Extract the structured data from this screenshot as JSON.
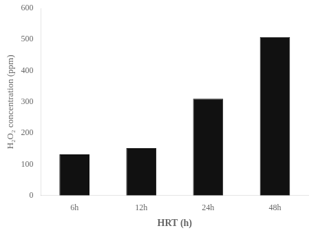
{
  "chart_data": {
    "type": "bar",
    "categories": [
      "6h",
      "12h",
      "24h",
      "48h"
    ],
    "values": [
      132,
      152,
      310,
      508
    ],
    "color": "#111111",
    "xlabel": "HRT (h)",
    "ylabel": "H₂O₂ concentration (ppm)",
    "ylim": [
      0,
      600
    ],
    "yticks": [
      0,
      100,
      200,
      300,
      400,
      500,
      600
    ],
    "grid": false
  }
}
